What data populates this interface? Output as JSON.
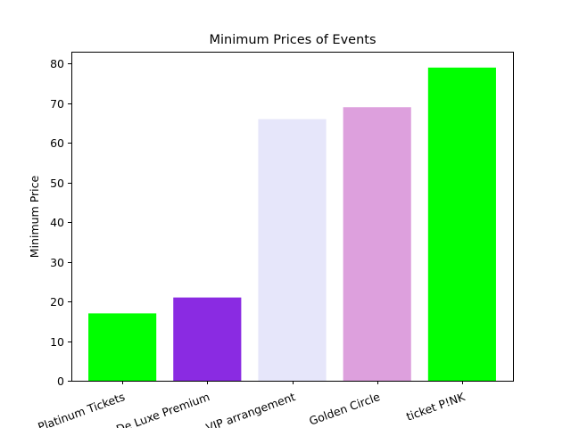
{
  "chart_data": {
    "type": "bar",
    "title": "Minimum Prices of Events",
    "xlabel": "",
    "ylabel": "Minimum Price",
    "categories": [
      "Platinum Tickets",
      "De Luxe Premium",
      "VIP arrangement",
      "Golden Circle",
      "ticket P!NK"
    ],
    "category_labels_second_line": [
      "",
      "",
      "",
      "",
      ""
    ],
    "values": [
      17,
      21,
      66,
      69,
      79
    ],
    "colors": [
      "#00ff00",
      "#8a2be2",
      "#e6e6fa",
      "#dda0dd",
      "#00ff00"
    ],
    "ylim": [
      0,
      83
    ],
    "yticks": [
      0,
      10,
      20,
      30,
      40,
      50,
      60,
      70,
      80
    ],
    "xtick_rotation": "rotated about 20 degrees",
    "grid": false,
    "legend": "none"
  }
}
